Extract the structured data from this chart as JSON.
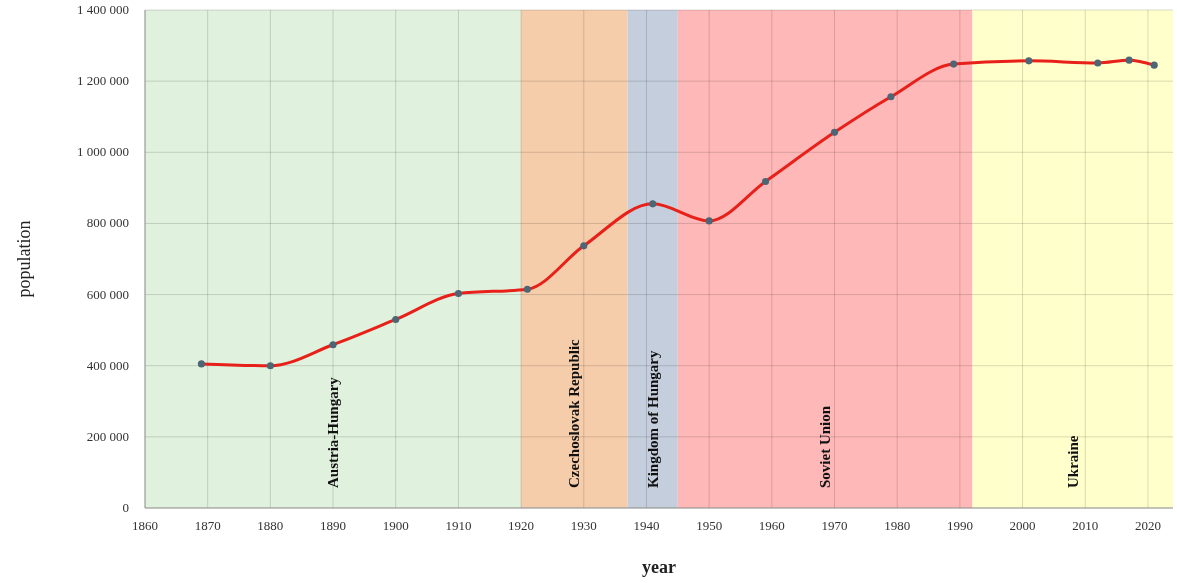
{
  "chart_data": {
    "type": "line",
    "xlabel": "year",
    "ylabel": "population",
    "x": [
      1869,
      1880,
      1890,
      1900,
      1910,
      1921,
      1930,
      1941,
      1950,
      1959,
      1970,
      1979,
      1989,
      2001,
      2012,
      2017,
      2021
    ],
    "series": [
      {
        "color": "#e8201a",
        "values": [
          405000,
          400000,
          459000,
          530000,
          603000,
          615000,
          737000,
          855000,
          807000,
          918000,
          1056000,
          1156000,
          1248000,
          1257000,
          1251000,
          1259000,
          1245000
        ]
      }
    ],
    "xlim": [
      1860,
      2024
    ],
    "xticks": [
      1860,
      1870,
      1880,
      1890,
      1900,
      1910,
      1920,
      1930,
      1940,
      1950,
      1960,
      1970,
      1980,
      1990,
      2000,
      2010,
      2020
    ],
    "ylim": [
      0,
      1400000
    ],
    "yticks": [
      {
        "value": 0,
        "label": "0"
      },
      {
        "value": 200000,
        "label": "200 000"
      },
      {
        "value": 400000,
        "label": "400 000"
      },
      {
        "value": 600000,
        "label": "600 000"
      },
      {
        "value": 800000,
        "label": "800 000"
      },
      {
        "value": 1000000,
        "label": "1 000 000"
      },
      {
        "value": 1200000,
        "label": "1 200 000"
      },
      {
        "value": 1400000,
        "label": "1 400 000"
      }
    ],
    "bands": [
      {
        "axis": "x",
        "from": 1860,
        "to": 1920,
        "label": "Austria-Hungary",
        "color": "#e0f2dd"
      },
      {
        "axis": "x",
        "from": 1920,
        "to": 1937,
        "label": "Czechoslovak Republic",
        "color": "#f6cdab"
      },
      {
        "axis": "x",
        "from": 1937,
        "to": 1945,
        "label": "Kingdom of Hungary",
        "color": "#c4cedc"
      },
      {
        "axis": "x",
        "from": 1945,
        "to": 1992,
        "label": "Soviet Union",
        "color": "#ffb8b8"
      },
      {
        "axis": "x",
        "from": 1992,
        "to": 2024,
        "label": "Ukraine",
        "color": "#ffffcc"
      }
    ],
    "grid": true,
    "marker": "circle",
    "line_style": "solid"
  }
}
